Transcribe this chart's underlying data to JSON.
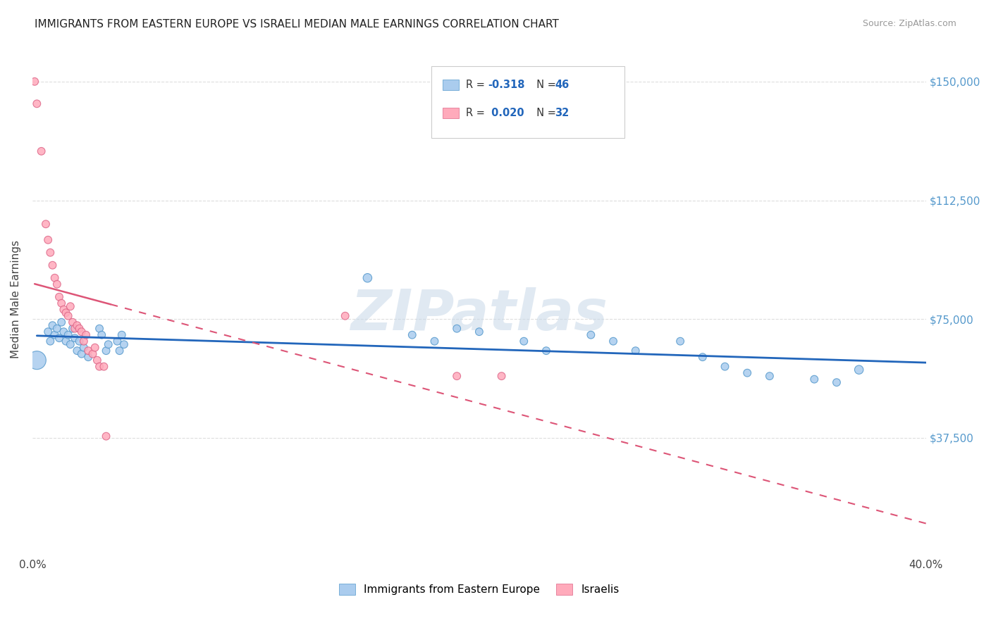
{
  "title": "IMMIGRANTS FROM EASTERN EUROPE VS ISRAELI MEDIAN MALE EARNINGS CORRELATION CHART",
  "source": "Source: ZipAtlas.com",
  "ylabel": "Median Male Earnings",
  "xlim": [
    0.0,
    0.4
  ],
  "ylim": [
    0,
    162500
  ],
  "blue_color": "#aaccee",
  "blue_edge_color": "#5599cc",
  "pink_color": "#ffaabb",
  "pink_edge_color": "#dd6688",
  "blue_line_color": "#2266bb",
  "pink_line_color": "#dd5577",
  "watermark_text": "ZIPatlas",
  "background_color": "#ffffff",
  "blue_points": [
    [
      0.002,
      62000,
      350
    ],
    [
      0.007,
      71000,
      60
    ],
    [
      0.008,
      68000,
      60
    ],
    [
      0.009,
      73000,
      60
    ],
    [
      0.01,
      70000,
      60
    ],
    [
      0.011,
      72000,
      60
    ],
    [
      0.012,
      69000,
      60
    ],
    [
      0.013,
      74000,
      60
    ],
    [
      0.014,
      71000,
      60
    ],
    [
      0.015,
      68000,
      60
    ],
    [
      0.016,
      70000,
      60
    ],
    [
      0.017,
      67000,
      60
    ],
    [
      0.018,
      72000,
      60
    ],
    [
      0.019,
      69000,
      60
    ],
    [
      0.02,
      65000,
      60
    ],
    [
      0.021,
      68000,
      60
    ],
    [
      0.022,
      64000,
      60
    ],
    [
      0.023,
      66000,
      60
    ],
    [
      0.025,
      63000,
      60
    ],
    [
      0.03,
      72000,
      60
    ],
    [
      0.031,
      70000,
      60
    ],
    [
      0.033,
      65000,
      60
    ],
    [
      0.034,
      67000,
      60
    ],
    [
      0.038,
      68000,
      60
    ],
    [
      0.039,
      65000,
      60
    ],
    [
      0.04,
      70000,
      60
    ],
    [
      0.041,
      67000,
      60
    ],
    [
      0.15,
      88000,
      80
    ],
    [
      0.17,
      70000,
      60
    ],
    [
      0.18,
      68000,
      60
    ],
    [
      0.19,
      72000,
      60
    ],
    [
      0.2,
      71000,
      60
    ],
    [
      0.22,
      68000,
      60
    ],
    [
      0.23,
      65000,
      60
    ],
    [
      0.25,
      70000,
      60
    ],
    [
      0.26,
      68000,
      60
    ],
    [
      0.27,
      65000,
      60
    ],
    [
      0.29,
      68000,
      60
    ],
    [
      0.3,
      63000,
      60
    ],
    [
      0.31,
      60000,
      60
    ],
    [
      0.32,
      58000,
      60
    ],
    [
      0.33,
      57000,
      60
    ],
    [
      0.35,
      56000,
      60
    ],
    [
      0.36,
      55000,
      60
    ],
    [
      0.37,
      59000,
      80
    ]
  ],
  "pink_points": [
    [
      0.001,
      150000,
      60
    ],
    [
      0.002,
      143000,
      60
    ],
    [
      0.004,
      128000,
      60
    ],
    [
      0.006,
      105000,
      60
    ],
    [
      0.007,
      100000,
      60
    ],
    [
      0.008,
      96000,
      60
    ],
    [
      0.009,
      92000,
      60
    ],
    [
      0.01,
      88000,
      60
    ],
    [
      0.011,
      86000,
      60
    ],
    [
      0.012,
      82000,
      60
    ],
    [
      0.013,
      80000,
      60
    ],
    [
      0.014,
      78000,
      60
    ],
    [
      0.015,
      77000,
      60
    ],
    [
      0.016,
      76000,
      60
    ],
    [
      0.017,
      79000,
      60
    ],
    [
      0.018,
      74000,
      60
    ],
    [
      0.019,
      72000,
      60
    ],
    [
      0.02,
      73000,
      60
    ],
    [
      0.021,
      72000,
      60
    ],
    [
      0.022,
      71000,
      60
    ],
    [
      0.023,
      68000,
      60
    ],
    [
      0.024,
      70000,
      60
    ],
    [
      0.025,
      65000,
      60
    ],
    [
      0.027,
      64000,
      60
    ],
    [
      0.028,
      66000,
      60
    ],
    [
      0.029,
      62000,
      60
    ],
    [
      0.03,
      60000,
      60
    ],
    [
      0.032,
      60000,
      60
    ],
    [
      0.033,
      38000,
      60
    ],
    [
      0.14,
      76000,
      60
    ],
    [
      0.19,
      57000,
      60
    ],
    [
      0.21,
      57000,
      60
    ]
  ],
  "legend_label_blue": "Immigrants from Eastern Europe",
  "legend_label_pink": "Israelis"
}
